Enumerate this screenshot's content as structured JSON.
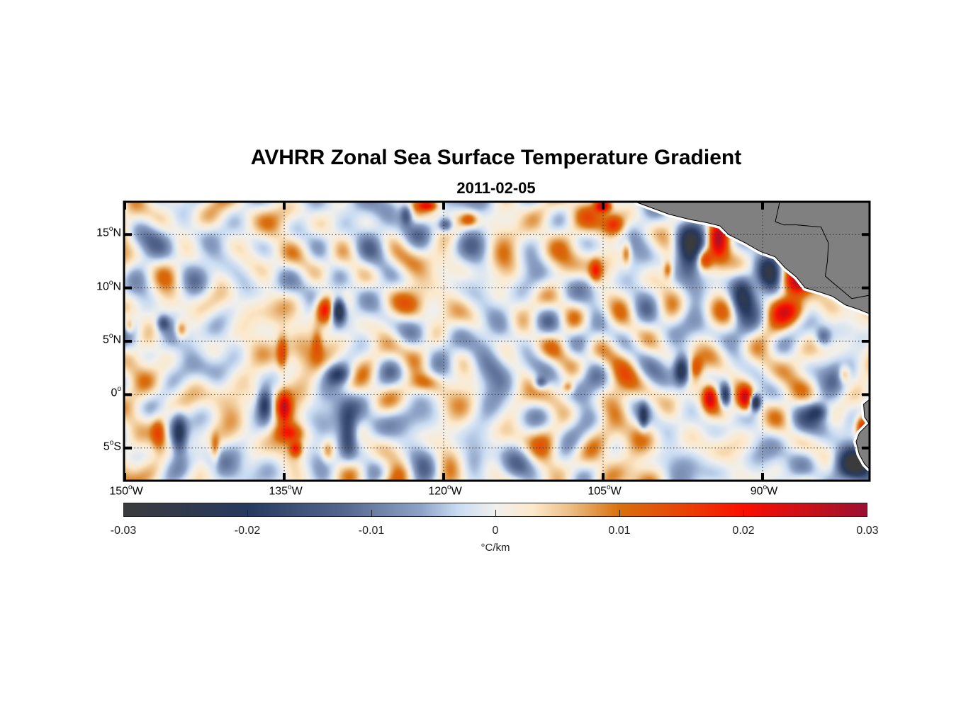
{
  "title": "AVHRR Zonal Sea Surface Temperature Gradient",
  "subtitle": "2011-02-05",
  "degree_symbol": "o",
  "chart_data": {
    "type": "heatmap",
    "title": "AVHRR Zonal Sea Surface Temperature Gradient",
    "subtitle": "2011-02-05",
    "lon_range": [
      -150,
      -80
    ],
    "lat_range": [
      -8,
      18
    ],
    "grid": true,
    "x_ticks": [
      {
        "value": -150,
        "deg": "150",
        "hemi": "W"
      },
      {
        "value": -135,
        "deg": "135",
        "hemi": "W"
      },
      {
        "value": -120,
        "deg": "120",
        "hemi": "W"
      },
      {
        "value": -105,
        "deg": "105",
        "hemi": "W"
      },
      {
        "value": -90,
        "deg": "90",
        "hemi": "W"
      }
    ],
    "y_ticks": [
      {
        "value": 15,
        "deg": "15",
        "hemi": "N"
      },
      {
        "value": 10,
        "deg": "10",
        "hemi": "N"
      },
      {
        "value": 5,
        "deg": "5",
        "hemi": "N"
      },
      {
        "value": 0,
        "deg": "0",
        "hemi": ""
      },
      {
        "value": -5,
        "deg": "5",
        "hemi": "S"
      }
    ],
    "colorbar": {
      "range": [
        -0.03,
        0.03
      ],
      "ticks": [
        -0.03,
        -0.02,
        -0.01,
        0,
        0.01,
        0.02,
        0.03
      ],
      "tick_labels": [
        "-0.03",
        "-0.02",
        "-0.01",
        "0",
        "0.01",
        "0.02",
        "0.03"
      ],
      "label": "°C/km",
      "position": "bottom",
      "stops": [
        [
          -0.03,
          "#3b3b3d"
        ],
        [
          -0.02,
          "#26395f"
        ],
        [
          -0.012,
          "#56688f"
        ],
        [
          -0.006,
          "#8fa3c8"
        ],
        [
          -0.003,
          "#c9dcf3"
        ],
        [
          0,
          "#f0f0ee"
        ],
        [
          0.003,
          "#fde9cb"
        ],
        [
          0.006,
          "#ecbf86"
        ],
        [
          0.01,
          "#d8700d"
        ],
        [
          0.015,
          "#e84505"
        ],
        [
          0.02,
          "#fb0f00"
        ],
        [
          0.03,
          "#9c1030"
        ]
      ]
    },
    "land_color": "#808080",
    "features": [
      {
        "lon": -131.3,
        "lat": 8.1,
        "value": 0.022,
        "sx": 0.6,
        "sy": 0.9
      },
      {
        "lon": -130.0,
        "lat": 8.0,
        "value": -0.03,
        "sx": 0.45,
        "sy": 0.8
      },
      {
        "lon": -97.0,
        "lat": 13.8,
        "value": -0.028,
        "sx": 0.9,
        "sy": 1.6
      },
      {
        "lon": -94.3,
        "lat": 14.8,
        "value": 0.03,
        "sx": 0.7,
        "sy": 1.4
      },
      {
        "lon": -95.6,
        "lat": 12.8,
        "value": 0.02,
        "sx": 0.5,
        "sy": 0.7
      },
      {
        "lon": -89.4,
        "lat": 11.3,
        "value": -0.028,
        "sx": 0.8,
        "sy": 1.2
      },
      {
        "lon": -87.0,
        "lat": 10.6,
        "value": 0.03,
        "sx": 0.9,
        "sy": 1.0
      },
      {
        "lon": -87.6,
        "lat": 8.0,
        "value": 0.016,
        "sx": 1.3,
        "sy": 0.9
      },
      {
        "lon": -92.0,
        "lat": 9.0,
        "value": -0.018,
        "sx": 0.7,
        "sy": 1.2
      },
      {
        "lon": -97.7,
        "lat": 2.3,
        "value": -0.024,
        "sx": 0.5,
        "sy": 0.9
      },
      {
        "lon": -96.4,
        "lat": 2.6,
        "value": 0.014,
        "sx": 0.5,
        "sy": 0.8
      },
      {
        "lon": -95.1,
        "lat": -0.1,
        "value": 0.02,
        "sx": 0.45,
        "sy": 0.8
      },
      {
        "lon": -93.6,
        "lat": 0.0,
        "value": -0.026,
        "sx": 0.4,
        "sy": 0.8
      },
      {
        "lon": -91.7,
        "lat": -0.3,
        "value": 0.024,
        "sx": 0.5,
        "sy": 0.8
      },
      {
        "lon": -90.8,
        "lat": -0.6,
        "value": -0.03,
        "sx": 0.35,
        "sy": 0.5
      },
      {
        "lon": -80.7,
        "lat": -2.9,
        "value": 0.025,
        "sx": 0.5,
        "sy": 0.8
      },
      {
        "lon": -81.3,
        "lat": -6.5,
        "value": -0.025,
        "sx": 1.1,
        "sy": 1.0
      },
      {
        "lon": -82.4,
        "lat": 2.0,
        "value": 0.014,
        "sx": 0.4,
        "sy": 0.6
      },
      {
        "lon": -135.1,
        "lat": -1.1,
        "value": 0.018,
        "sx": 0.45,
        "sy": 1.0
      },
      {
        "lon": -136.9,
        "lat": -0.8,
        "value": -0.022,
        "sx": 0.5,
        "sy": 1.0
      },
      {
        "lon": -134.6,
        "lat": -3.5,
        "value": 0.014,
        "sx": 0.9,
        "sy": 0.6
      },
      {
        "lon": -134.0,
        "lat": -5.0,
        "value": 0.016,
        "sx": 0.4,
        "sy": 0.5
      },
      {
        "lon": -145.0,
        "lat": -3.6,
        "value": -0.02,
        "sx": 0.5,
        "sy": 1.3
      },
      {
        "lon": -146.9,
        "lat": -3.5,
        "value": 0.014,
        "sx": 0.5,
        "sy": 1.1
      },
      {
        "lon": -129.1,
        "lat": -3.6,
        "value": -0.02,
        "sx": 0.6,
        "sy": 1.5
      },
      {
        "lon": -131.0,
        "lat": -5.2,
        "value": 0.01,
        "sx": 0.4,
        "sy": 0.7
      },
      {
        "lon": -121.8,
        "lat": 1.2,
        "value": 0.013,
        "sx": 1.1,
        "sy": 0.7
      },
      {
        "lon": -130.0,
        "lat": 2.0,
        "value": -0.014,
        "sx": 0.8,
        "sy": 0.6
      },
      {
        "lon": -135.3,
        "lat": 4.0,
        "value": 0.012,
        "sx": 0.35,
        "sy": 1.2
      },
      {
        "lon": -132.0,
        "lat": 5.0,
        "value": 0.008,
        "sx": 0.35,
        "sy": 1.0
      },
      {
        "lon": -105.8,
        "lat": 11.7,
        "value": 0.015,
        "sx": 0.4,
        "sy": 0.7
      },
      {
        "lon": -104.0,
        "lat": 16.0,
        "value": 0.016,
        "sx": 0.7,
        "sy": 0.7
      },
      {
        "lon": -105.1,
        "lat": 17.8,
        "value": 0.026,
        "sx": 0.5,
        "sy": 0.4
      },
      {
        "lon": -102.9,
        "lat": 13.4,
        "value": 0.012,
        "sx": 0.3,
        "sy": 0.8
      },
      {
        "lon": -119.9,
        "lat": 16.0,
        "value": -0.018,
        "sx": 0.5,
        "sy": 0.5
      },
      {
        "lon": -117.7,
        "lat": 16.5,
        "value": 0.014,
        "sx": 0.6,
        "sy": 0.5
      },
      {
        "lon": -123.6,
        "lat": 17.0,
        "value": -0.016,
        "sx": 0.4,
        "sy": 0.7
      },
      {
        "lon": -121.6,
        "lat": 17.8,
        "value": 0.016,
        "sx": 0.6,
        "sy": 0.3
      },
      {
        "lon": -144.8,
        "lat": 6.2,
        "value": 0.014,
        "sx": 0.4,
        "sy": 0.6
      },
      {
        "lon": -146.5,
        "lat": 6.8,
        "value": -0.014,
        "sx": 0.4,
        "sy": 0.5
      },
      {
        "lon": -149.7,
        "lat": 6.5,
        "value": 0.012,
        "sx": 0.3,
        "sy": 0.5
      },
      {
        "lon": -141.6,
        "lat": -5.0,
        "value": 0.01,
        "sx": 0.3,
        "sy": 1.0
      },
      {
        "lon": -108.4,
        "lat": 0.8,
        "value": 0.012,
        "sx": 0.4,
        "sy": 0.4
      },
      {
        "lon": -111.0,
        "lat": 1.2,
        "value": -0.014,
        "sx": 0.4,
        "sy": 0.4
      },
      {
        "lon": -101.3,
        "lat": -2.0,
        "value": -0.016,
        "sx": 0.3,
        "sy": 0.8
      },
      {
        "lon": -99.0,
        "lat": 11.8,
        "value": 0.012,
        "sx": 0.3,
        "sy": 0.6
      },
      {
        "lon": -84.4,
        "lat": 5.5,
        "value": -0.012,
        "sx": 0.5,
        "sy": 0.6
      },
      {
        "lon": -84.9,
        "lat": -1.5,
        "value": -0.012,
        "sx": 0.6,
        "sy": 0.5
      }
    ],
    "land": [
      [
        [
          -101.8,
          18.2
        ],
        [
          -98.8,
          16.9
        ],
        [
          -96.8,
          16.4
        ],
        [
          -95.2,
          16.1
        ],
        [
          -94.0,
          15.8
        ],
        [
          -93.2,
          15.0
        ],
        [
          -91.6,
          14.2
        ],
        [
          -90.2,
          13.4
        ],
        [
          -88.8,
          12.9
        ],
        [
          -87.9,
          11.9
        ],
        [
          -86.8,
          11.0
        ],
        [
          -86.0,
          10.0
        ],
        [
          -84.6,
          9.6
        ],
        [
          -83.4,
          9.2
        ],
        [
          -82.2,
          8.4
        ],
        [
          -81.0,
          8.0
        ],
        [
          -80.0,
          7.6
        ],
        [
          -80.0,
          18.2
        ],
        [
          -88.4,
          18.2
        ],
        [
          -88.8,
          16.2
        ],
        [
          -88.0,
          15.9
        ],
        [
          -86.8,
          15.9
        ],
        [
          -84.5,
          15.7
        ],
        [
          -83.8,
          14.2
        ],
        [
          -83.9,
          12.5
        ],
        [
          -84.1,
          11.1
        ],
        [
          -83.4,
          10.5
        ],
        [
          -82.8,
          10.0
        ],
        [
          -81.6,
          9.0
        ],
        [
          -80.0,
          9.3
        ],
        [
          -80.0,
          18.2
        ]
      ],
      [
        [
          -80.0,
          -0.5
        ],
        [
          -80.5,
          -0.9
        ],
        [
          -80.4,
          -2.1
        ],
        [
          -80.0,
          -2.7
        ],
        [
          -80.9,
          -3.6
        ],
        [
          -81.2,
          -4.4
        ],
        [
          -80.9,
          -5.6
        ],
        [
          -80.4,
          -6.5
        ],
        [
          -80.0,
          -6.9
        ]
      ]
    ]
  }
}
